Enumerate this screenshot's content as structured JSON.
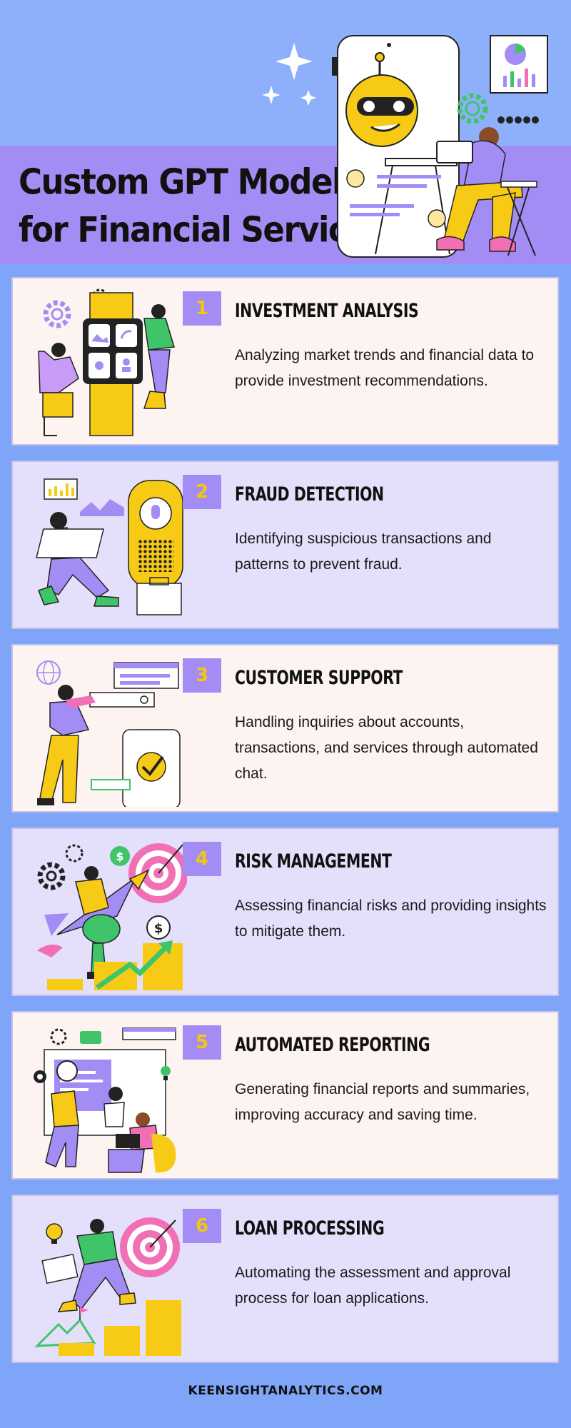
{
  "header": {
    "title_line1": "Custom GPT Models",
    "title_line2": "for Financial Services"
  },
  "cards": [
    {
      "number": "1",
      "title": "INVESTMENT ANALYSIS",
      "description": "Analyzing market trends and financial data to provide investment recommendations."
    },
    {
      "number": "2",
      "title": "FRAUD DETECTION",
      "description": "Identifying suspicious transactions and patterns to prevent fraud."
    },
    {
      "number": "3",
      "title": "CUSTOMER SUPPORT",
      "description": "Handling inquiries about accounts, transactions, and services through automated chat."
    },
    {
      "number": "4",
      "title": "RISK MANAGEMENT",
      "description": "Assessing financial risks and providing insights to mitigate them."
    },
    {
      "number": "5",
      "title": "AUTOMATED REPORTING",
      "description": "Generating financial reports and summaries, improving accuracy and saving time."
    },
    {
      "number": "6",
      "title": "LOAN PROCESSING",
      "description": "Automating the assessment and approval process for loan applications."
    }
  ],
  "footer": {
    "website": "KEENSIGHTANALYTICS.COM"
  },
  "colors": {
    "background": "#7fa5f8",
    "header_band": "#a48cf5",
    "number_box": "#a48cf5",
    "number_text": "#f2c80f",
    "card_light": "#fdf4f2",
    "card_lavender": "#e4e0fb",
    "accent_yellow": "#f7cb15",
    "accent_pink": "#f06fb5",
    "accent_green": "#3fc46a"
  },
  "icons": [
    "sparkle-icon",
    "robot-icon",
    "chart-icon",
    "gear-icon",
    "target-icon",
    "dollar-icon",
    "lightbulb-icon",
    "briefcase-icon"
  ]
}
